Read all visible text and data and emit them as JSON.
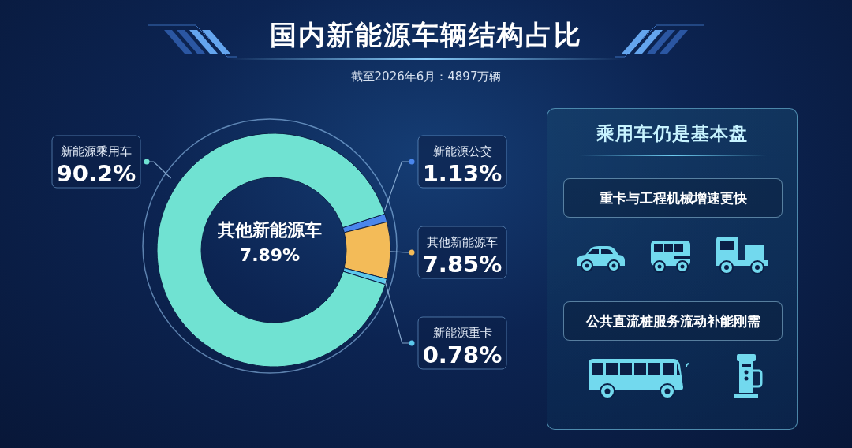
{
  "chart_data": [
    {
      "type": "donut",
      "title": "国内新能源车辆结构占比",
      "subtitle": "截至2026年6月：4897万辆",
      "categories": [
        "新能源公交",
        "其他新能源车",
        "新能源重卡",
        "新能源乘用车"
      ],
      "values": [
        1.13,
        7.85,
        0.78,
        90.2
      ],
      "value_labels": [
        "1.13%",
        "7.85%",
        "0.78%",
        "90.2%"
      ],
      "colors": [
        "#4a86ec",
        "#f3bb58",
        "#5cc8ec",
        "#70e2d2"
      ],
      "annotations": [
        "其他新能源车 7.89%"
      ]
    },
    {
      "type": "other",
      "title": "乘用车仍是基本盘",
      "annotations": [
        "重卡与工程机械增速更快",
        "公共直流桩服务流动补能刚需"
      ]
    }
  ]
}
